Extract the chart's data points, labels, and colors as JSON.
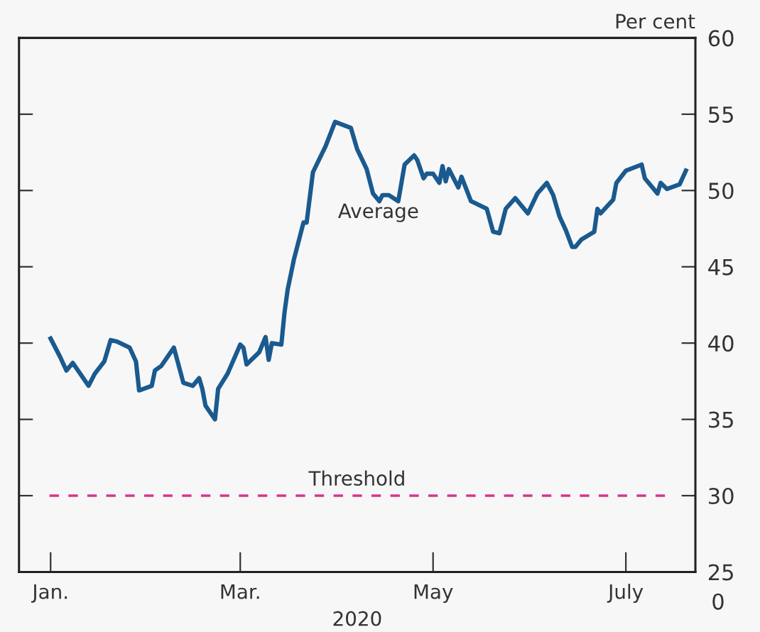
{
  "chart_data": {
    "type": "line",
    "x": [
      "2020-01-01",
      "2020-01-04",
      "2020-01-06",
      "2020-01-08",
      "2020-01-13",
      "2020-01-15",
      "2020-01-18",
      "2020-01-20",
      "2020-01-22",
      "2020-01-26",
      "2020-01-28",
      "2020-01-29",
      "2020-02-02",
      "2020-02-03",
      "2020-02-05",
      "2020-02-09",
      "2020-02-12",
      "2020-02-15",
      "2020-02-17",
      "2020-02-18",
      "2020-02-19",
      "2020-02-22",
      "2020-02-23",
      "2020-02-26",
      "2020-03-01",
      "2020-03-02",
      "2020-03-03",
      "2020-03-07",
      "2020-03-09",
      "2020-03-10",
      "2020-03-11",
      "2020-03-14",
      "2020-03-15",
      "2020-03-16",
      "2020-03-18",
      "2020-03-21",
      "2020-03-22",
      "2020-03-24",
      "2020-03-28",
      "2020-03-31",
      "2020-04-05",
      "2020-04-07",
      "2020-04-10",
      "2020-04-12",
      "2020-04-14",
      "2020-04-15",
      "2020-04-17",
      "2020-04-20",
      "2020-04-22",
      "2020-04-25",
      "2020-04-26",
      "2020-04-28",
      "2020-04-29",
      "2020-05-01",
      "2020-05-03",
      "2020-05-04",
      "2020-05-05",
      "2020-05-06",
      "2020-05-09",
      "2020-05-10",
      "2020-05-13",
      "2020-05-18",
      "2020-05-20",
      "2020-05-22",
      "2020-05-24",
      "2020-05-27",
      "2020-05-31",
      "2020-06-03",
      "2020-06-06",
      "2020-06-08",
      "2020-06-10",
      "2020-06-12",
      "2020-06-14",
      "2020-06-15",
      "2020-06-17",
      "2020-06-21",
      "2020-06-22",
      "2020-06-23",
      "2020-06-27",
      "2020-06-28",
      "2020-07-01",
      "2020-07-06",
      "2020-07-07",
      "2020-07-11",
      "2020-07-12",
      "2020-07-14",
      "2020-07-18",
      "2020-07-20"
    ],
    "series": [
      {
        "name": "Average",
        "color": "#1a5a8e",
        "values": [
          40.3,
          39.1,
          38.2,
          38.7,
          37.2,
          38.0,
          38.8,
          40.2,
          40.1,
          39.7,
          38.8,
          36.9,
          37.2,
          38.2,
          38.5,
          39.7,
          37.4,
          37.2,
          37.7,
          37.0,
          35.9,
          35.0,
          37.0,
          38.0,
          39.9,
          39.7,
          38.6,
          39.4,
          40.4,
          38.9,
          40.0,
          39.9,
          42.0,
          43.5,
          45.5,
          47.9,
          47.9,
          51.2,
          52.9,
          54.5,
          54.1,
          52.7,
          51.4,
          49.8,
          49.3,
          49.7,
          49.7,
          49.3,
          51.7,
          52.3,
          52.0,
          50.8,
          51.1,
          51.1,
          50.5,
          51.6,
          50.6,
          51.4,
          50.2,
          50.9,
          49.3,
          48.8,
          47.3,
          47.2,
          48.8,
          49.5,
          48.5,
          49.8,
          50.5,
          49.7,
          48.3,
          47.4,
          46.3,
          46.3,
          46.8,
          47.3,
          48.8,
          48.5,
          49.4,
          50.5,
          51.3,
          51.7,
          50.8,
          49.8,
          50.5,
          50.1,
          50.4,
          51.3
        ]
      }
    ],
    "xlim": [
      "2019-12-22",
      "2020-07-23"
    ],
    "xticks": [
      {
        "value": "2020-01-01",
        "label": "Jan."
      },
      {
        "value": "2020-03-01",
        "label": "Mar."
      },
      {
        "value": "2020-05-01",
        "label": "May"
      },
      {
        "value": "2020-07-01",
        "label": "July"
      }
    ],
    "ylim": [
      25,
      60
    ],
    "yticks": [
      25,
      30,
      35,
      40,
      45,
      50,
      55,
      60
    ],
    "xlabel": "2020",
    "ylabel": "Per cent",
    "annotations": [
      "0"
    ],
    "ref_lines": [
      {
        "axis": "y",
        "value": 30,
        "label": "Threshold",
        "color": "#d6368f",
        "line_style": "dashed"
      }
    ],
    "grid": false,
    "legend": false,
    "marker": "none",
    "line_style": "solid"
  }
}
